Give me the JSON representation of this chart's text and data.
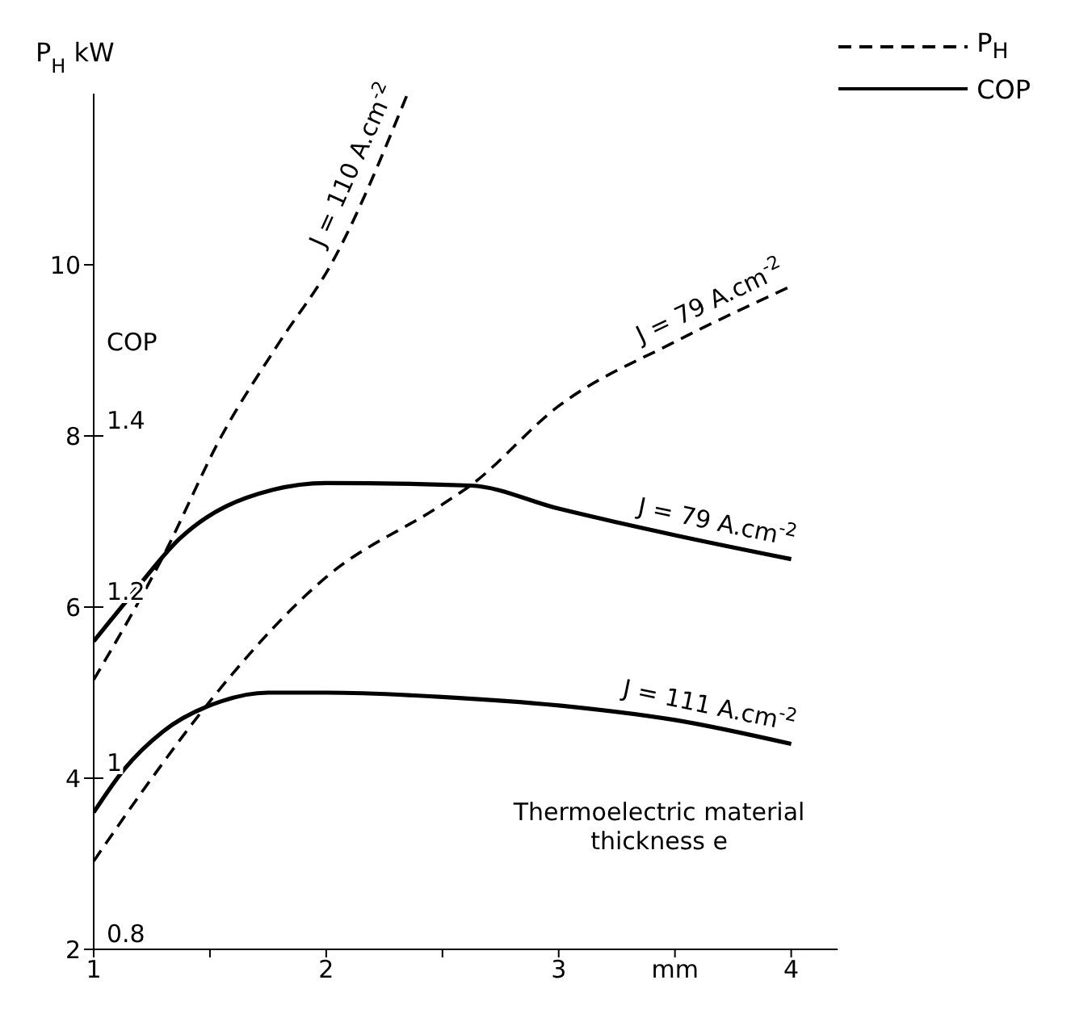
{
  "chart_data": {
    "type": "line",
    "xlabel": "Thermoelectric material thickness e",
    "ylabel": "P$_{H}$ kW",
    "y2label": "COP",
    "xlim": [
      1,
      4.2
    ],
    "xticks": [
      1,
      {
        "value": 1.5,
        "label": null
      },
      2,
      {
        "value": 2.5,
        "label": null
      },
      3,
      {
        "value": 3.5,
        "label": "mm"
      },
      4
    ],
    "ylim": [
      2,
      12
    ],
    "yticks": [
      2,
      4,
      6,
      8,
      10
    ],
    "y2lim": [
      0.8,
      1.8
    ],
    "y2ticks": [
      0.8,
      1,
      1.2,
      1.4
    ],
    "legend": "top right",
    "grid": false,
    "marker": "none",
    "series": [
      {
        "name": "J = 110 A.cm$^{-2}$",
        "color": "#000000",
        "line_style": "dashed",
        "x": [
          1,
          1.3,
          1.55,
          1.8,
          2.02,
          2.35
        ],
        "values": [
          5.15,
          6.6,
          8,
          9.1,
          10,
          12
        ]
      },
      {
        "name": "J = 79 A.cm$^{-2}$",
        "color": "#000000",
        "line_style": "dashed",
        "x": [
          1,
          1.25,
          1.5,
          2,
          2.5,
          2.62,
          3,
          3.5,
          4
        ],
        "values": [
          3.03,
          4,
          4.9,
          6.35,
          7.2,
          7.42,
          8.35,
          9.1,
          9.75
        ]
      },
      {
        "name": "J = 79 A.cm$^{-2}$",
        "color": "#000000",
        "line_style": "solid",
        "axis": "y2",
        "x": [
          1,
          1.15,
          1.37,
          1.77,
          2,
          2.62,
          3,
          3.5,
          4
        ],
        "values": [
          1.16,
          1.21,
          1.28,
          1.337,
          1.345,
          1.342,
          1.315,
          1.284,
          1.256
        ]
      },
      {
        "name": "J = 111 A.cm$^{-2}$",
        "color": "#000000",
        "line_style": "solid",
        "axis": "y2",
        "x": [
          1,
          1.13,
          1.3,
          1.55,
          1.75,
          2,
          2.5,
          3,
          3.5,
          4
        ],
        "values": [
          0.96,
          1.01,
          1.055,
          1.09,
          1.1,
          1.1,
          1.095,
          1.085,
          1.068,
          1.04
        ]
      }
    ],
    "annotations": [
      "P$_{H}$",
      "COP"
    ]
  }
}
